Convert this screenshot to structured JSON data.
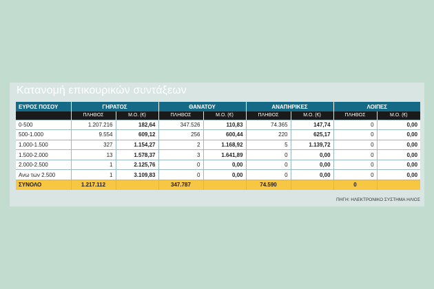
{
  "title": "Κατανομή επικουρικών συντάξεων",
  "header": {
    "first": "ΕΥΡΟΣ ΠΟΣΟΥ",
    "groups": [
      "ΓΗΡΑΤΟΣ",
      "ΘΑΝΑΤΟΥ",
      "ΑΝΑΠΗΡΙΚΕΣ",
      "ΛΟΙΠΕΣ"
    ],
    "sub_count": "ΠΛΗΘΟΣ",
    "sub_avg": "Μ.Ο. (€)"
  },
  "rows": [
    {
      "label": "0-500",
      "values": [
        "1.207.216",
        "182,64",
        "347.526",
        "110,83",
        "74.365",
        "147,74",
        "0",
        "0,00"
      ]
    },
    {
      "label": "500-1.000",
      "values": [
        "9.554",
        "609,12",
        "256",
        "600,44",
        "220",
        "625,17",
        "0",
        "0,00"
      ]
    },
    {
      "label": "1.000-1.500",
      "values": [
        "327",
        "1.154,27",
        "2",
        "1.168,92",
        "5",
        "1.139,72",
        "0",
        "0,00"
      ]
    },
    {
      "label": "1.500-2.000",
      "values": [
        "13",
        "1.578,37",
        "3",
        "1.641,89",
        "0",
        "0,00",
        "0",
        "0,00"
      ]
    },
    {
      "label": "2.000-2.500",
      "values": [
        "1",
        "2.125,76",
        "0",
        "0,00",
        "0",
        "0,00",
        "0",
        "0,00"
      ]
    },
    {
      "label": "Ανω των 2.500",
      "values": [
        "1",
        "3.109,83",
        "0",
        "0,00",
        "0",
        "0,00",
        "0",
        "0,00"
      ]
    }
  ],
  "total": {
    "label": "ΣΥΝΟΛΟ",
    "values": [
      "1.217.112",
      "",
      "347.787",
      "",
      "74.590",
      "",
      "0",
      ""
    ]
  },
  "source": "ΠΗΓΗ: ΗΛΕΚΤΡΟΝΙΚΟ ΣΥΣΤΗΜΑ ΗΛΙΟΣ",
  "colors": {
    "header": "#146a87",
    "subheader": "#1a1a1a",
    "total": "#f7c744",
    "background": "#c2ddd0"
  }
}
